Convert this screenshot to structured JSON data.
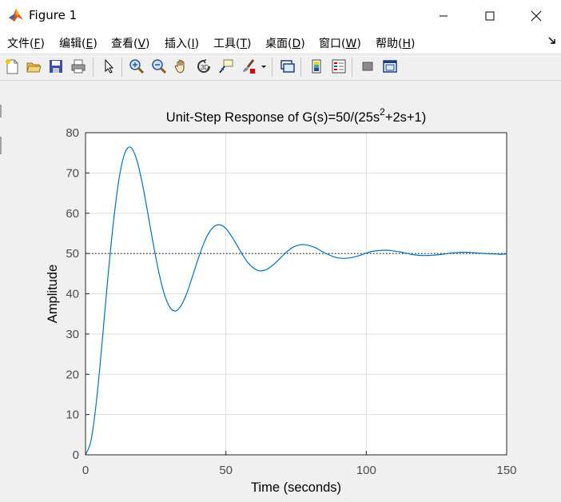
{
  "window": {
    "title": "Figure 1",
    "app_icon": "matlab-icon",
    "controls": [
      "minimize-icon",
      "maximize-icon",
      "close-icon"
    ]
  },
  "menubar": {
    "items": [
      {
        "label": "文件",
        "key": "F"
      },
      {
        "label": "编辑",
        "key": "E"
      },
      {
        "label": "查看",
        "key": "V"
      },
      {
        "label": "插入",
        "key": "I"
      },
      {
        "label": "工具",
        "key": "T"
      },
      {
        "label": "桌面",
        "key": "D"
      },
      {
        "label": "窗口",
        "key": "W"
      },
      {
        "label": "帮助",
        "key": "H"
      }
    ],
    "dock_icon": "dock-arrow-icon"
  },
  "toolbar": {
    "buttons": [
      "new-figure-icon",
      "open-file-icon",
      "save-icon",
      "print-icon",
      "edit-plot-arrow-icon",
      "zoom-in-icon",
      "zoom-out-icon",
      "pan-hand-icon",
      "rotate-3d-icon",
      "data-cursor-icon",
      "brush-icon",
      "brush-dropdown-icon",
      "link-plot-icon",
      "insert-colorbar-icon",
      "insert-legend-icon",
      "hide-plot-tools-icon",
      "show-plot-tools-icon"
    ]
  },
  "chart_data": {
    "type": "line",
    "title": "Unit-Step Response of G(s)=50/(25s²+2s+1)",
    "title_parts": {
      "pre": "Unit-Step Response of G(s)=50/(25s",
      "sup": "2",
      "post": "+2s+1)"
    },
    "xlabel": "Time (seconds)",
    "ylabel": "Amplitude",
    "xlim": [
      0,
      150
    ],
    "ylim": [
      0,
      80
    ],
    "xticks": [
      0,
      50,
      100,
      150
    ],
    "yticks": [
      0,
      10,
      20,
      30,
      40,
      50,
      60,
      70,
      80
    ],
    "grid": true,
    "reference_line": {
      "y": 50,
      "style": "dotted",
      "color": "#000000"
    },
    "series": [
      {
        "color": "#0072bd",
        "x": [
          0,
          2,
          4,
          6,
          8,
          10,
          12,
          14,
          16,
          18,
          20,
          22,
          24,
          26,
          28,
          30,
          32,
          34,
          36,
          38,
          40,
          42,
          44,
          46,
          48,
          50,
          52,
          54,
          56,
          58,
          60,
          62,
          64,
          66,
          68,
          70,
          72,
          74,
          76,
          78,
          80,
          82,
          84,
          86,
          88,
          90,
          92,
          94,
          96,
          98,
          100,
          102,
          104,
          106,
          108,
          110,
          112,
          114,
          116,
          118,
          120,
          122,
          124,
          126,
          128,
          130,
          132,
          134,
          136,
          138,
          140,
          142,
          144,
          146,
          148,
          150
        ],
        "y": [
          0,
          3.7,
          14.0,
          28.6,
          44.3,
          58.1,
          68.8,
          74.9,
          76.4,
          73.8,
          68.2,
          60.8,
          52.9,
          45.7,
          40.1,
          36.7,
          35.7,
          37.0,
          40.0,
          44.1,
          48.4,
          52.3,
          55.2,
          56.8,
          57.1,
          56.2,
          54.3,
          52.0,
          49.6,
          47.6,
          46.3,
          45.7,
          45.9,
          46.7,
          47.9,
          49.3,
          50.6,
          51.6,
          52.1,
          52.2,
          51.9,
          51.4,
          50.6,
          49.9,
          49.3,
          48.9,
          48.8,
          48.9,
          49.2,
          49.6,
          50.1,
          50.5,
          50.7,
          50.8,
          50.8,
          50.6,
          50.4,
          50.1,
          49.8,
          49.6,
          49.5,
          49.5,
          49.6,
          49.7,
          49.9,
          50.1,
          50.2,
          50.3,
          50.3,
          50.2,
          50.1,
          50.0,
          49.9,
          49.9,
          49.8,
          49.9
        ]
      }
    ]
  }
}
